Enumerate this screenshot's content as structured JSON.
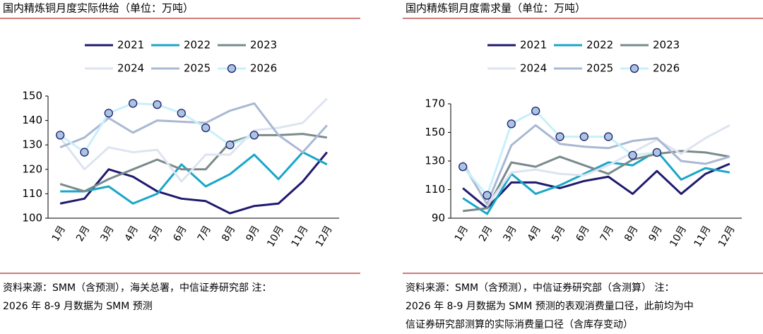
{
  "chart_data": [
    {
      "type": "line",
      "title": "国内精炼铜月度实际供给（单位：万吨）",
      "categories": [
        "1月",
        "2月",
        "3月",
        "4月",
        "5月",
        "6月",
        "7月",
        "8月",
        "9月",
        "10月",
        "11月",
        "12月"
      ],
      "ylim": [
        100,
        150
      ],
      "yticks": [
        100,
        110,
        120,
        130,
        140,
        150
      ],
      "series": [
        {
          "name": "2021",
          "color": "#1f1a6e",
          "values": [
            106,
            108,
            120,
            117,
            111,
            108,
            107,
            102,
            105,
            106,
            115,
            127
          ]
        },
        {
          "name": "2022",
          "color": "#1aa6c8",
          "values": [
            111,
            111,
            113,
            106,
            110,
            122,
            113,
            118,
            126,
            116,
            127,
            122
          ]
        },
        {
          "name": "2023",
          "color": "#7a8a8a",
          "values": [
            114,
            111,
            116,
            120,
            124,
            120,
            120,
            131,
            134,
            134,
            134.5,
            133
          ]
        },
        {
          "name": "2024",
          "color": "#dde4f0",
          "values": [
            133,
            120,
            129,
            127,
            128,
            115,
            126,
            126,
            136,
            137,
            139,
            149
          ]
        },
        {
          "name": "2025",
          "color": "#a9b8d3",
          "values": [
            129,
            133,
            141,
            135,
            140,
            139.5,
            139,
            144,
            147,
            134,
            127,
            138
          ]
        },
        {
          "name": "2026",
          "color": "#c8f0fa",
          "marker": "circle",
          "marker_color": "#a9c6e0",
          "values": [
            134,
            127,
            143,
            147,
            146.5,
            143,
            137,
            130,
            134,
            null,
            null,
            null
          ]
        }
      ],
      "source": [
        "资料来源：SMM（含预测），海关总署，中信证券研究部    注：",
        "2026 年 8-9 月数据为 SMM 预测"
      ]
    },
    {
      "type": "line",
      "title": "国内精炼铜月度需求量（单位：万吨）",
      "categories": [
        "1月",
        "2月",
        "3月",
        "4月",
        "5月",
        "6月",
        "7月",
        "8月",
        "9月",
        "10月",
        "11月",
        "12月"
      ],
      "ylim": [
        90,
        170
      ],
      "yticks": [
        90,
        110,
        130,
        150,
        170
      ],
      "series": [
        {
          "name": "2021",
          "color": "#1f1a6e",
          "values": [
            111,
            97,
            115,
            115,
            111,
            116,
            119,
            107,
            123,
            107,
            121,
            128
          ]
        },
        {
          "name": "2022",
          "color": "#1aa6c8",
          "values": [
            104,
            93,
            121,
            107,
            113,
            121,
            129,
            127,
            137,
            117,
            125,
            122
          ]
        },
        {
          "name": "2023",
          "color": "#7a8a8a",
          "values": [
            95,
            97,
            129,
            126,
            133,
            127,
            121,
            131,
            135,
            137,
            136,
            133
          ]
        },
        {
          "name": "2024",
          "color": "#dde4f0",
          "values": [
            130,
            99,
            122,
            124,
            121,
            120,
            127,
            136,
            145,
            135,
            146,
            155
          ]
        },
        {
          "name": "2025",
          "color": "#a9b8d3",
          "values": [
            128,
            100,
            141,
            155,
            142,
            140,
            139,
            144,
            146,
            130,
            128,
            133
          ]
        },
        {
          "name": "2026",
          "color": "#c8f0fa",
          "marker": "circle",
          "marker_color": "#a9c6e0",
          "values": [
            126,
            106,
            156,
            165,
            147,
            147,
            147,
            134,
            136,
            null,
            null,
            null
          ]
        }
      ],
      "source": [
        "资料来源：SMM（含预测），中信证券研究部（含测算）     注：",
        "2026 年 8-9 月数据为 SMM 预测的表观消费量口径，此前均为中",
        "信证券研究部测算的实际消费量口径（含库存变动）"
      ]
    }
  ]
}
